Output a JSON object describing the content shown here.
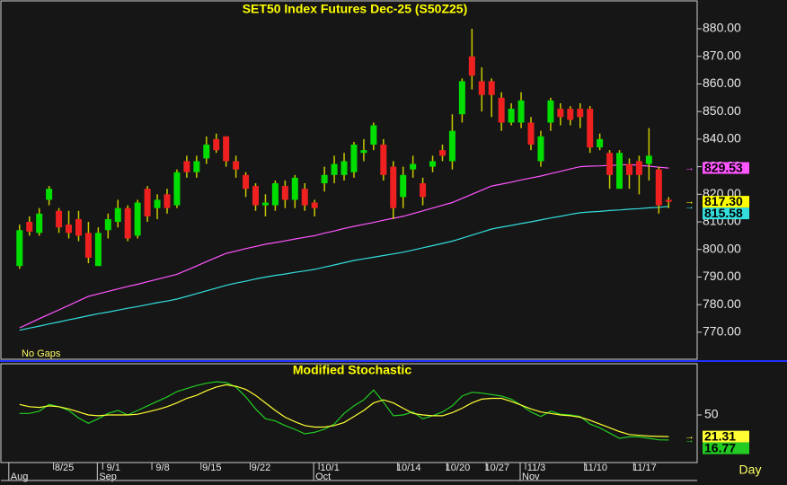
{
  "chart_data": [
    {
      "type": "candlestick",
      "title": "SET50  Index  Futures  Dec-25  (S50Z25)",
      "annotation": "No  Gaps",
      "up_color": "#00dd00",
      "down_color": "#ee2020",
      "wick_color": "#c8c800",
      "ohlc": [
        [
          794,
          809,
          793,
          807
        ],
        [
          810,
          812,
          805,
          806.5
        ],
        [
          806,
          815,
          805,
          813
        ],
        [
          818,
          823,
          816,
          822
        ],
        [
          814,
          815,
          806,
          808
        ],
        [
          809,
          814,
          804,
          806
        ],
        [
          811,
          814,
          803,
          805
        ],
        [
          806,
          810,
          795,
          797
        ],
        [
          794,
          808,
          794,
          806
        ],
        [
          807,
          813,
          804,
          811
        ],
        [
          810,
          818,
          808,
          815
        ],
        [
          815,
          816,
          803,
          804
        ],
        [
          805,
          818,
          804,
          817
        ],
        [
          822,
          823,
          810,
          812
        ],
        [
          815,
          820,
          811,
          818
        ],
        [
          820,
          822,
          813,
          815
        ],
        [
          816,
          829,
          815,
          828
        ],
        [
          832,
          834,
          826,
          828
        ],
        [
          828,
          834,
          826,
          832
        ],
        [
          833,
          841,
          831,
          838
        ],
        [
          840,
          842,
          835,
          836
        ],
        [
          841,
          841,
          830,
          832
        ],
        [
          832,
          834,
          826,
          829
        ],
        [
          827,
          828,
          819,
          822
        ],
        [
          823,
          824,
          814,
          816
        ],
        [
          816,
          820,
          812,
          817
        ],
        [
          816,
          825,
          814,
          824
        ],
        [
          823,
          825,
          815,
          818
        ],
        [
          818,
          827,
          815,
          826
        ],
        [
          822,
          824,
          814,
          816
        ],
        [
          817,
          818,
          812,
          815
        ],
        [
          824,
          830,
          821,
          827
        ],
        [
          827,
          834,
          824,
          831
        ],
        [
          827,
          835,
          825,
          832
        ],
        [
          828,
          839,
          826,
          838
        ],
        [
          835,
          840,
          832,
          836
        ],
        [
          838,
          846,
          836,
          845
        ],
        [
          838,
          840,
          825,
          827
        ],
        [
          830,
          832,
          811,
          815
        ],
        [
          819,
          830,
          815,
          827
        ],
        [
          829,
          834,
          826,
          831
        ],
        [
          824,
          826,
          816,
          819
        ],
        [
          830,
          834,
          828,
          832
        ],
        [
          836,
          838,
          832,
          834
        ],
        [
          832,
          849,
          829,
          843
        ],
        [
          849,
          862,
          846,
          861
        ],
        [
          870,
          880,
          858,
          863
        ],
        [
          861,
          866,
          850,
          856
        ],
        [
          861,
          862,
          848,
          856
        ],
        [
          855,
          857,
          843,
          846
        ],
        [
          846,
          853,
          845,
          851
        ],
        [
          846,
          857,
          844,
          854
        ],
        [
          846,
          848,
          836,
          838
        ],
        [
          832,
          843,
          830,
          841
        ],
        [
          846,
          855,
          843,
          854
        ],
        [
          851,
          853,
          845,
          848
        ],
        [
          851,
          852,
          845,
          847
        ],
        [
          851,
          853,
          844,
          848
        ],
        [
          851,
          852,
          835,
          837
        ],
        [
          837,
          842,
          836,
          840
        ],
        [
          835,
          836,
          822,
          827
        ],
        [
          822,
          836,
          822,
          835
        ],
        [
          831,
          833,
          822,
          827
        ],
        [
          832,
          834,
          820,
          827
        ],
        [
          831,
          844,
          825,
          834
        ],
        [
          829,
          830,
          813,
          816
        ],
        [
          818,
          819,
          815,
          817.3
        ]
      ],
      "last_label": "817.30",
      "last_label_color": "#ffff00",
      "series": [
        {
          "color": "#ff55ff",
          "values": [
            771.6,
            773.2,
            774.9,
            776.5,
            778.1,
            779.7,
            781.4,
            783,
            783.9,
            784.8,
            785.7,
            786.6,
            787.4,
            788.3,
            789.2,
            790.1,
            791,
            792.5,
            794,
            795.6,
            797.1,
            798.6,
            799.4,
            800.3,
            801.1,
            801.9,
            802.5,
            803.1,
            803.8,
            804.4,
            805,
            805.9,
            806.7,
            807.6,
            808.4,
            809.1,
            809.8,
            810.6,
            811.3,
            812,
            813,
            814,
            815,
            816,
            817,
            818.5,
            820,
            821.5,
            823,
            823.7,
            824.4,
            825.2,
            825.9,
            826.6,
            827.5,
            828.3,
            829.2,
            830,
            830.2,
            830.3,
            830.5,
            830.6,
            830.8,
            830.5,
            830.2,
            829.8,
            829.53
          ]
        },
        {
          "color": "#33dddd",
          "values": [
            770.7,
            771.5,
            772.2,
            773,
            773.7,
            774.5,
            775.2,
            776,
            776.7,
            777.3,
            778,
            778.7,
            779.3,
            780,
            780.7,
            781.3,
            782,
            783,
            784,
            785,
            786,
            787,
            787.8,
            788.5,
            789.3,
            790,
            790.6,
            791.1,
            791.7,
            792.2,
            792.8,
            793.6,
            794.4,
            795.2,
            796,
            796.6,
            797.2,
            797.8,
            798.4,
            799,
            799.8,
            800.6,
            801.4,
            802.2,
            803,
            804.1,
            805.2,
            806.3,
            807.4,
            808.1,
            808.7,
            809.4,
            810,
            810.7,
            811.4,
            812,
            812.7,
            813.3,
            813.6,
            813.8,
            814.1,
            814.3,
            814.6,
            814.8,
            815.1,
            815.3,
            815.58
          ]
        }
      ],
      "xlim": [
        -1.9,
        68.9
      ],
      "ylim": [
        760.2,
        888.8
      ],
      "yticks": [
        {
          "value": 770,
          "label": "770.00"
        },
        {
          "value": 780,
          "label": "780.00"
        },
        {
          "value": 790,
          "label": "790.00"
        },
        {
          "value": 800,
          "label": "800.00"
        },
        {
          "value": 810,
          "label": "810.00"
        },
        {
          "value": 820,
          "label": "820.00"
        },
        {
          "value": 830,
          "label": "830.00"
        },
        {
          "value": 840,
          "label": "840.00"
        },
        {
          "value": 850,
          "label": "850.00"
        },
        {
          "value": 860,
          "label": "860.00"
        },
        {
          "value": 870,
          "label": "870.00"
        },
        {
          "value": 880,
          "label": "880.00"
        }
      ]
    },
    {
      "type": "line",
      "title": "Modified  Stochastic",
      "series": [
        {
          "color": "#22cc22",
          "values": [
            52,
            52,
            55,
            64,
            61,
            56,
            46,
            39,
            45,
            52,
            56,
            50,
            56,
            62,
            68,
            74,
            81,
            85,
            89,
            92,
            94,
            93,
            87,
            74,
            58,
            45,
            42,
            36,
            31,
            25,
            27,
            31,
            38,
            52,
            62,
            70,
            83,
            67,
            49,
            50,
            54,
            45,
            49,
            54,
            62,
            75,
            80,
            79,
            77,
            75,
            71,
            63,
            54,
            48,
            55,
            51,
            50,
            48,
            38,
            33,
            26,
            19,
            21,
            21,
            19,
            17,
            16.77
          ]
        },
        {
          "color": "#ffff33",
          "values": [
            64,
            61,
            60,
            62,
            61,
            58,
            54,
            50,
            49,
            50,
            50,
            50,
            51,
            54,
            57,
            61,
            66,
            72,
            76,
            82,
            87,
            90,
            88,
            84,
            76,
            66,
            56,
            47,
            41,
            36,
            34,
            34,
            36,
            40,
            48,
            56,
            66,
            70,
            66,
            59,
            52,
            50,
            49,
            49,
            53,
            59,
            66,
            71,
            72,
            72,
            68,
            63,
            58,
            54,
            52,
            50,
            49,
            47,
            43,
            38,
            33,
            28,
            24,
            23,
            22,
            21.5,
            21.31
          ]
        }
      ],
      "xlim": [
        -1.9,
        68.9
      ],
      "ylim": [
        -13.1,
        117.9
      ],
      "yticks": [
        50
      ],
      "xticks": [
        {
          "value": 4,
          "label": "8/25"
        },
        {
          "value": 9,
          "label": "9/1"
        },
        {
          "value": 14,
          "label": "9/8"
        },
        {
          "value": 19,
          "label": "9/15"
        },
        {
          "value": 24,
          "label": "9/22"
        },
        {
          "value": 31,
          "label": "10/1"
        },
        {
          "value": 39,
          "label": "10/14"
        },
        {
          "value": 44,
          "label": "10/20"
        },
        {
          "value": 48,
          "label": "10/27"
        },
        {
          "value": 52,
          "label": "11/3"
        },
        {
          "value": 58,
          "label": "11/10"
        },
        {
          "value": 63,
          "label": "11/17"
        }
      ],
      "month_ticks": [
        {
          "value": 0,
          "label": "Aug"
        },
        {
          "value": 9,
          "label": "Sep"
        },
        {
          "value": 31,
          "label": "Oct"
        },
        {
          "value": 52,
          "label": "Nov"
        }
      ],
      "x_label": "Day"
    }
  ]
}
